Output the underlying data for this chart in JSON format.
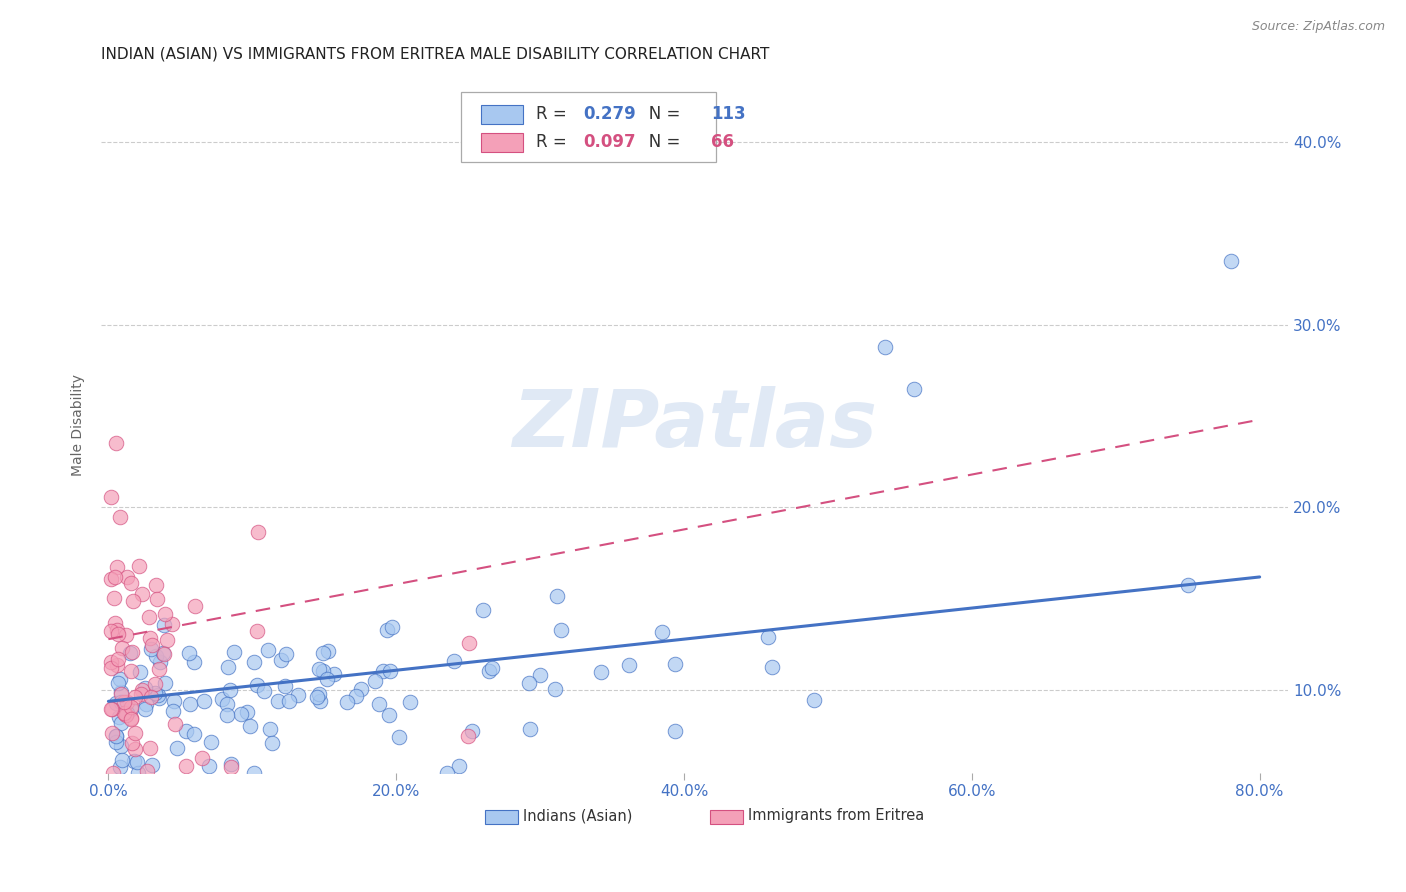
{
  "title": "INDIAN (ASIAN) VS IMMIGRANTS FROM ERITREA MALE DISABILITY CORRELATION CHART",
  "source": "Source: ZipAtlas.com",
  "ylabel": "Male Disability",
  "watermark": "ZIPatlas",
  "blue_R": "0.279",
  "blue_N": "113",
  "pink_R": "0.097",
  "pink_N": "66",
  "blue_color": "#a8c8f0",
  "pink_color": "#f4a0b8",
  "blue_line_color": "#4472c4",
  "pink_line_color": "#d45080",
  "blue_trend_x": [
    0.0,
    0.8
  ],
  "blue_trend_y_start": 0.094,
  "blue_trend_y_end": 0.162,
  "pink_trend_x": [
    0.0,
    0.8
  ],
  "pink_trend_y_start": 0.128,
  "pink_trend_y_end": 0.248,
  "xlim": [
    -0.005,
    0.82
  ],
  "ylim": [
    0.055,
    0.435
  ],
  "xticks": [
    0.0,
    0.2,
    0.4,
    0.6,
    0.8
  ],
  "xticklabels": [
    "0.0%",
    "20.0%",
    "40.0%",
    "60.0%",
    "80.0%"
  ],
  "yticks": [
    0.1,
    0.2,
    0.3,
    0.4
  ],
  "yticklabels": [
    "10.0%",
    "20.0%",
    "30.0%",
    "40.0%"
  ],
  "background_color": "#ffffff",
  "grid_color": "#cccccc",
  "title_fontsize": 11,
  "axis_label_fontsize": 10,
  "tick_fontsize": 11,
  "source_fontsize": 9
}
